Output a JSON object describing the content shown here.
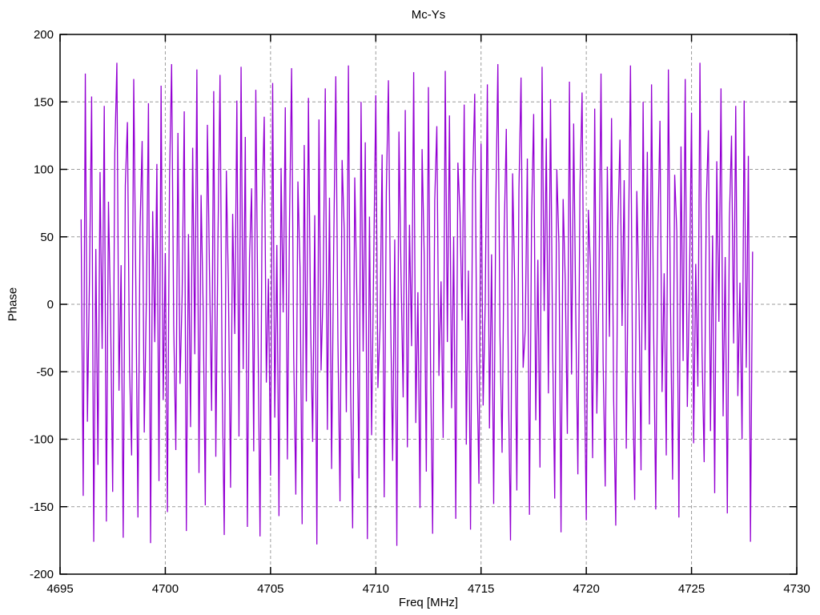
{
  "chart_data": {
    "type": "line",
    "title": "Mc-Ys",
    "xlabel": "Freq [MHz]",
    "ylabel": "Phase",
    "xlim": [
      4695,
      4730
    ],
    "ylim": [
      -200,
      200
    ],
    "x_ticks": [
      4695,
      4700,
      4705,
      4710,
      4715,
      4720,
      4725,
      4730
    ],
    "y_ticks": [
      -200,
      -150,
      -100,
      -50,
      0,
      50,
      100,
      150,
      200
    ],
    "grid": true,
    "legend": "none",
    "line_color": "#9400d3",
    "grid_color": "#9c9c9c",
    "axis_color": "#000000",
    "background_color": "#ffffff",
    "series": [
      {
        "name": "Phase",
        "x_start": 4696.0,
        "x_step": 0.1,
        "values": [
          63,
          -142,
          171,
          -87,
          22,
          154,
          -176,
          41,
          -119,
          98,
          -33,
          147,
          -161,
          76,
          -8,
          -139,
          112,
          179,
          -64,
          29,
          -173,
          88,
          135,
          -46,
          -112,
          167,
          14,
          -158,
          57,
          121,
          -95,
          3,
          149,
          -177,
          69,
          -28,
          104,
          -131,
          162,
          -71,
          38,
          -154,
          93,
          178,
          -16,
          -108,
          127,
          -59,
          7,
          143,
          -168,
          52,
          -91,
          116,
          -37,
          174,
          -125,
          81,
          -4,
          -149,
          133,
          24,
          -79,
          158,
          -113,
          46,
          170,
          -55,
          -171,
          99,
          11,
          -136,
          67,
          -22,
          151,
          -98,
          176,
          -48,
          124,
          -165,
          34,
          86,
          -109,
          159,
          -15,
          -172,
          73,
          139,
          -58,
          19,
          -127,
          164,
          -84,
          44,
          -157,
          101,
          -6,
          146,
          -115,
          61,
          175,
          -39,
          -141,
          91,
          27,
          -163,
          118,
          -72,
          153,
          -11,
          -102,
          66,
          -178,
          137,
          -49,
          13,
          160,
          -93,
          79,
          -122,
          42,
          169,
          -26,
          -146,
          107,
          55,
          -80,
          177,
          -59,
          -166,
          94,
          6,
          -129,
          150,
          -35,
          120,
          -174,
          65,
          -97,
          31,
          155,
          -62,
          -18,
          111,
          -143,
          83,
          166,
          -3,
          -116,
          48,
          -179,
          128,
          21,
          -69,
          144,
          -106,
          59,
          -31,
          172,
          -88,
          9,
          -151,
          115,
          36,
          -124,
          161,
          -44,
          -170,
          77,
          132,
          -53,
          17,
          -99,
          173,
          -28,
          140,
          -77,
          50,
          -159,
          105,
          68,
          -12,
          148,
          -104,
          25,
          -167,
          90,
          156,
          -41,
          -133,
          119,
          -75,
          2,
          163,
          -92,
          37,
          -148,
          71,
          178,
          -23,
          -110,
          53,
          130,
          -60,
          -175,
          97,
          15,
          -138,
          85,
          168,
          -47,
          -19,
          108,
          -156,
          62,
          141,
          -86,
          33,
          -121,
          176,
          -5,
          123,
          -66,
          152,
          -30,
          -144,
          100,
          45,
          -169,
          78,
          18,
          -96,
          165,
          -52,
          134,
          -7,
          -126,
          87,
          157,
          -38,
          -160,
          70,
          26,
          -114,
          145,
          -81,
          10,
          171,
          -43,
          -135,
          102,
          -24,
          138,
          -70,
          -164,
          58,
          122,
          -16,
          92,
          -107,
          40,
          177,
          -56,
          -145,
          84,
          8,
          -123,
          150,
          -34,
          113,
          -89,
          163,
          -20,
          -152,
          49,
          136,
          -65,
          23,
          -112,
          174,
          -1,
          -130,
          96,
          54,
          -158,
          117,
          -42,
          167,
          -76,
          12,
          142,
          -103,
          30,
          -61,
          179,
          -36,
          -117,
          74,
          129,
          -94,
          51,
          -140,
          106,
          -13,
          160,
          -83,
          35,
          -155,
          64,
          125,
          -29,
          147,
          -68,
          16,
          -100,
          151,
          -47,
          110,
          -176,
          39
        ]
      }
    ]
  }
}
